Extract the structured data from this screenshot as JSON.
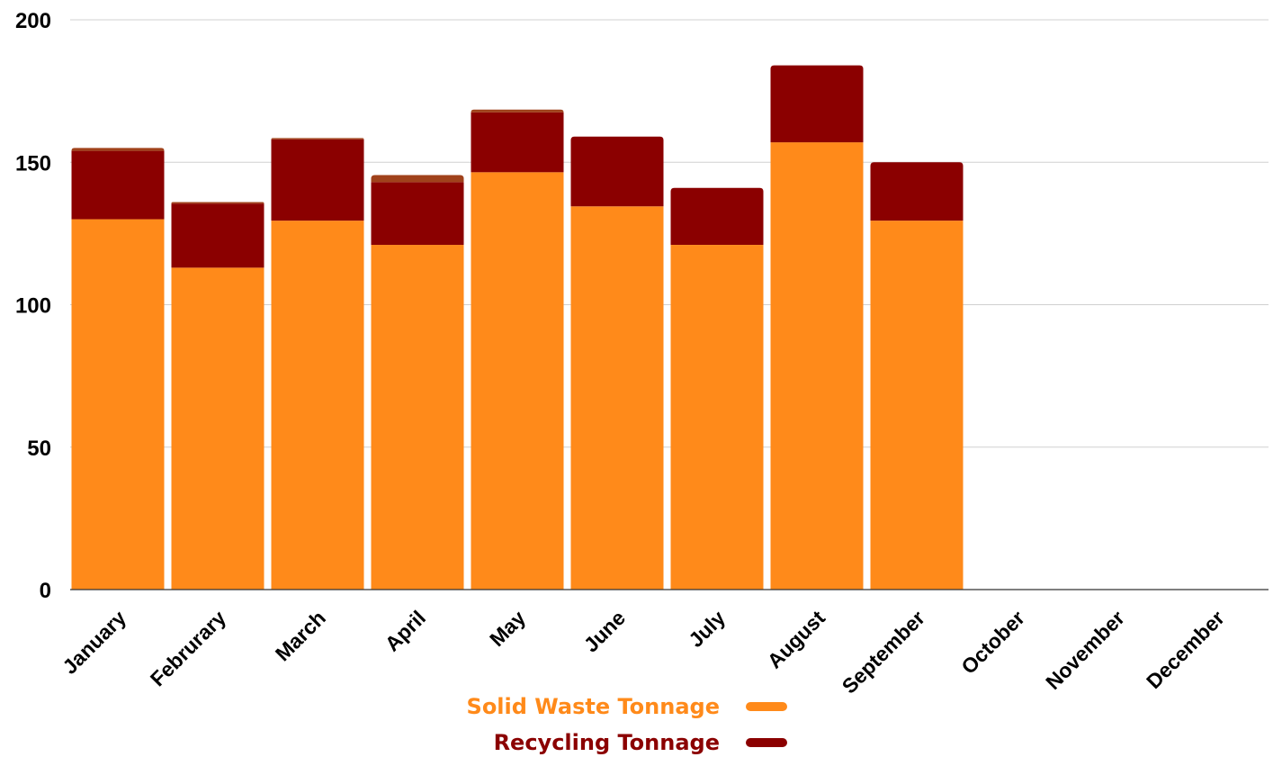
{
  "chart_data": {
    "type": "bar",
    "stacked": true,
    "categories": [
      "January",
      "Februrary",
      "March",
      "April",
      "May",
      "June",
      "July",
      "August",
      "September",
      "October",
      "November",
      "December"
    ],
    "series": [
      {
        "name": "Solid Waste Tonnage",
        "color": "#FF8A1A",
        "values": [
          130,
          113,
          129.5,
          121,
          146.5,
          134.5,
          121,
          157,
          129.5,
          null,
          null,
          null
        ]
      },
      {
        "name": "Recycling Tonnage",
        "color": "#8B0000",
        "values": [
          24,
          22.5,
          28.5,
          22,
          21,
          24.5,
          20,
          27,
          20.5,
          null,
          null,
          null
        ]
      },
      {
        "color": "#A0421B",
        "values": [
          1,
          0.5,
          0.5,
          2.5,
          1,
          0,
          0,
          0,
          0,
          null,
          null,
          null
        ]
      }
    ],
    "yticks": [
      0,
      50,
      100,
      150,
      200
    ],
    "ylim": [
      0,
      200
    ],
    "grid": true,
    "legend_position": "bottom-center"
  }
}
